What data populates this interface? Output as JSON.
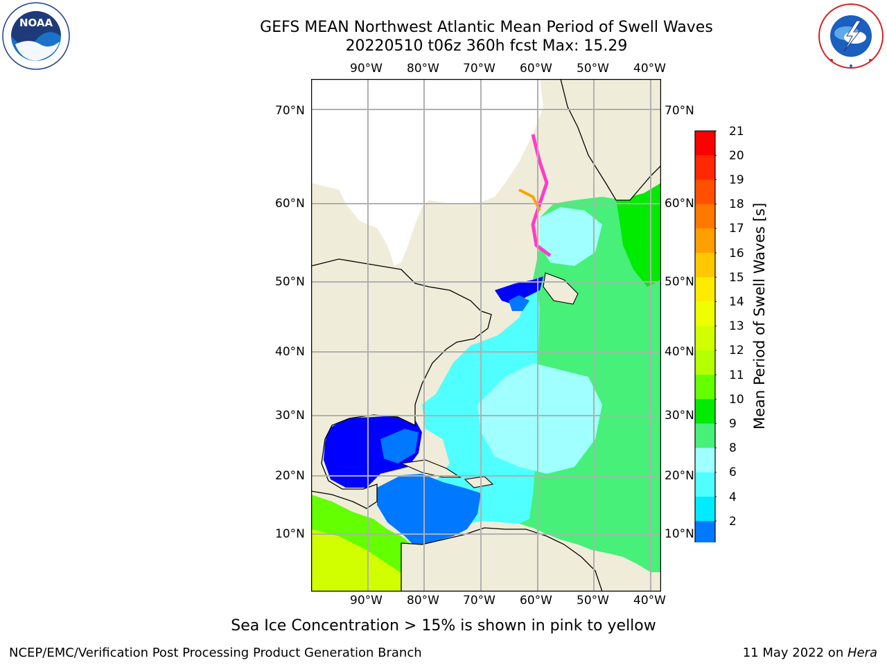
{
  "header": {
    "title_line1": "GEFS MEAN Northwest Atlantic Mean Period of Swell Waves",
    "title_line2": "20220510 t06z 360h fcst   Max: 15.29"
  },
  "logos": {
    "left": {
      "name": "NOAA",
      "ring_text": "NATIONAL OCEANIC AND ATMOSPHERIC ADMINISTRATION · U.S. DEPARTMENT OF COMMERCE"
    },
    "right": {
      "name": "NATIONAL WEATHER SERVICE"
    }
  },
  "map": {
    "lon_labels": [
      "90°W",
      "80°W",
      "70°W",
      "60°W",
      "50°W",
      "40°W"
    ],
    "lat_labels": [
      "70°N",
      "60°N",
      "50°N",
      "40°N",
      "30°N",
      "20°N",
      "10°N"
    ],
    "colors": {
      "land": "#efecd9",
      "ice": "#ffffff",
      "grid": "#b0b0b0"
    }
  },
  "colorbar": {
    "title": "Mean Period of Swell Waves [s]",
    "ticks": [
      "21",
      "20",
      "19",
      "18",
      "17",
      "16",
      "15",
      "14",
      "13",
      "12",
      "11",
      "10",
      "9",
      "8",
      "6",
      "4",
      "2"
    ],
    "colors": [
      "#ff0000",
      "#ff2800",
      "#ff5000",
      "#ff7800",
      "#ffa000",
      "#ffc800",
      "#ffeb00",
      "#f0ff00",
      "#d2ff00",
      "#b4ff00",
      "#64ff00",
      "#00eb00",
      "#46f079",
      "#a0ffff",
      "#50ffff",
      "#00ebff",
      "#0078ff"
    ],
    "under_color": "#0000ff"
  },
  "caption": "Sea Ice Concentration > 15% is shown in pink to yellow",
  "footer": {
    "left": "NCEP/EMC/Verification Post Processing Product Generation Branch",
    "right_date": "11 May 2022 on ",
    "right_host": "Hera"
  }
}
